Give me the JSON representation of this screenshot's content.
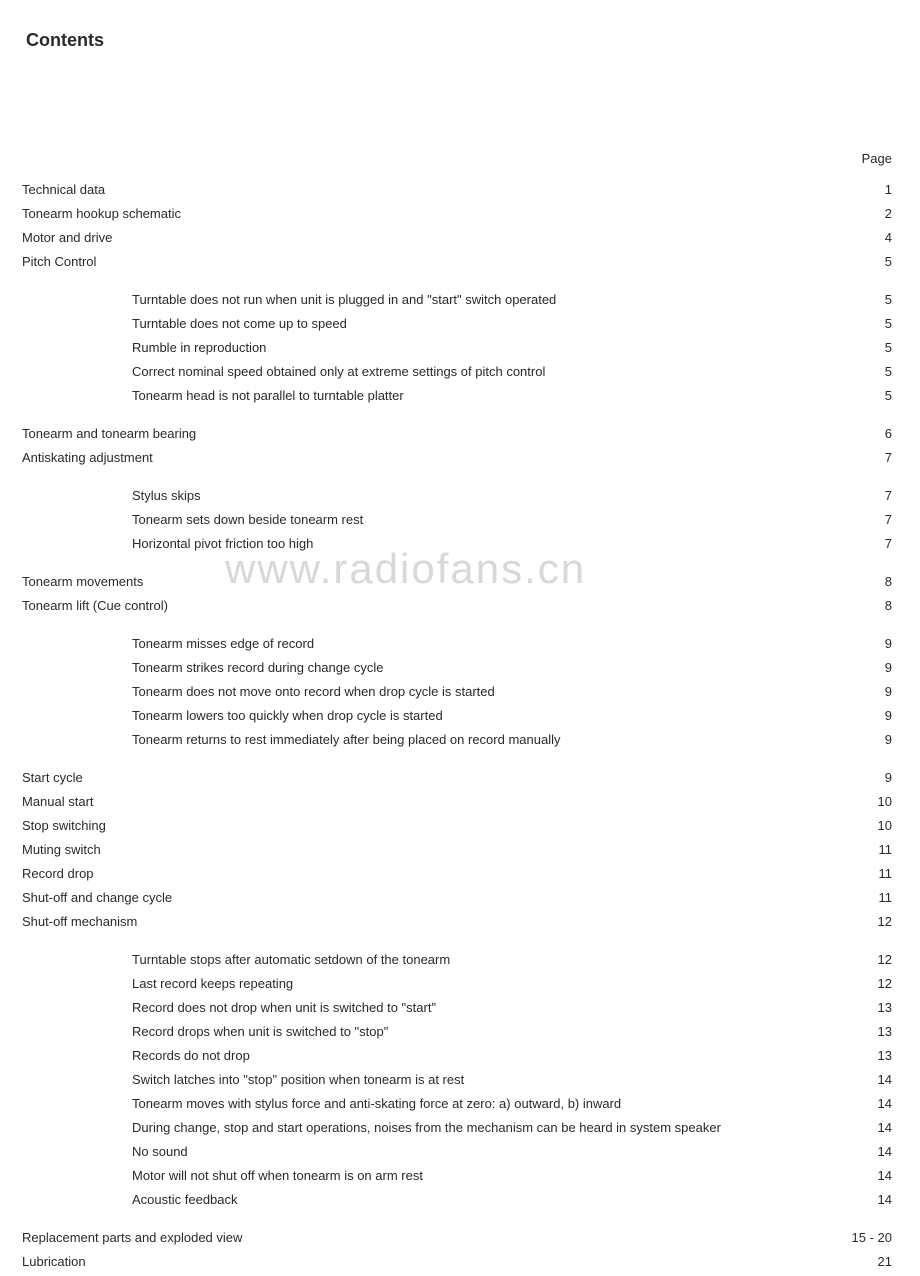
{
  "title": "Contents",
  "page_column_header": "Page",
  "watermark": "www.radiofans.cn",
  "entries": [
    {
      "level": 0,
      "label": "Technical data",
      "page": "1"
    },
    {
      "level": 0,
      "label": "Tonearm hookup schematic",
      "page": "2"
    },
    {
      "level": 0,
      "label": "Motor and drive",
      "page": "4"
    },
    {
      "level": 0,
      "label": "Pitch Control",
      "page": "5",
      "gap_after": true
    },
    {
      "level": 1,
      "label": "Turntable does not run when unit is plugged in and \"start\" switch operated",
      "page": "5"
    },
    {
      "level": 1,
      "label": "Turntable does not come up to speed",
      "page": "5"
    },
    {
      "level": 1,
      "label": "Rumble in reproduction",
      "page": "5"
    },
    {
      "level": 1,
      "label": "Correct nominal speed obtained only at extreme settings of pitch control",
      "page": "5"
    },
    {
      "level": 1,
      "label": "Tonearm head is not parallel to turntable platter",
      "page": "5",
      "gap_after": true
    },
    {
      "level": 0,
      "label": "Tonearm and tonearm bearing",
      "page": "6"
    },
    {
      "level": 0,
      "label": "Antiskating adjustment",
      "page": "7",
      "gap_after": true
    },
    {
      "level": 1,
      "label": "Stylus skips",
      "page": "7"
    },
    {
      "level": 1,
      "label": "Tonearm sets down beside tonearm rest",
      "page": "7"
    },
    {
      "level": 1,
      "label": "Horizontal pivot friction too high",
      "page": "7",
      "gap_after": true
    },
    {
      "level": 0,
      "label": "Tonearm movements",
      "page": "8"
    },
    {
      "level": 0,
      "label": "Tonearm lift (Cue control)",
      "page": "8",
      "gap_after": true
    },
    {
      "level": 1,
      "label": "Tonearm misses edge of record",
      "page": "9"
    },
    {
      "level": 1,
      "label": "Tonearm strikes record during change  cycle",
      "page": "9"
    },
    {
      "level": 1,
      "label": "Tonearm does not move onto record when drop cycle is started",
      "page": "9"
    },
    {
      "level": 1,
      "label": "Tonearm lowers too quickly when drop cycle is started",
      "page": "9"
    },
    {
      "level": 1,
      "label": "Tonearm returns to rest immediately after being placed on record manually",
      "page": "9",
      "gap_after": true
    },
    {
      "level": 0,
      "label": "Start cycle",
      "page": "9"
    },
    {
      "level": 0,
      "label": "Manual start",
      "page": "10"
    },
    {
      "level": 0,
      "label": "Stop switching",
      "page": "10"
    },
    {
      "level": 0,
      "label": "Muting switch",
      "page": "11"
    },
    {
      "level": 0,
      "label": "Record drop",
      "page": "11"
    },
    {
      "level": 0,
      "label": "Shut-off and change cycle",
      "page": "11"
    },
    {
      "level": 0,
      "label": "Shut-off mechanism",
      "page": "12",
      "gap_after": true
    },
    {
      "level": 1,
      "label": "Turntable stops after automatic setdown of the tonearm",
      "page": "12"
    },
    {
      "level": 1,
      "label": "Last record keeps repeating",
      "page": "12"
    },
    {
      "level": 1,
      "label": "Record does not drop when unit is switched to \"start\"",
      "page": "13"
    },
    {
      "level": 1,
      "label": "Record drops when unit is switched to \"stop\"",
      "page": "13"
    },
    {
      "level": 1,
      "label": "Records do not drop",
      "page": "13"
    },
    {
      "level": 1,
      "label": "Switch latches into \"stop\" position when tonearm is at rest",
      "page": "14"
    },
    {
      "level": 1,
      "label": "Tonearm moves with stylus force and anti-skating force at zero: a) outward, b) inward",
      "page": "14"
    },
    {
      "level": 1,
      "label": "During change, stop and start operations, noises from the mechanism can be heard in system speaker",
      "page": "14"
    },
    {
      "level": 1,
      "label": "No sound",
      "page": "14"
    },
    {
      "level": 1,
      "label": "Motor will not shut off when tonearm is on arm rest",
      "page": "14"
    },
    {
      "level": 1,
      "label": "Acoustic feedback",
      "page": "14",
      "gap_after": true
    },
    {
      "level": 0,
      "label": "Replacement parts and exploded view",
      "page": "15 - 20"
    },
    {
      "level": 0,
      "label": "Lubrication",
      "page": "21"
    }
  ]
}
